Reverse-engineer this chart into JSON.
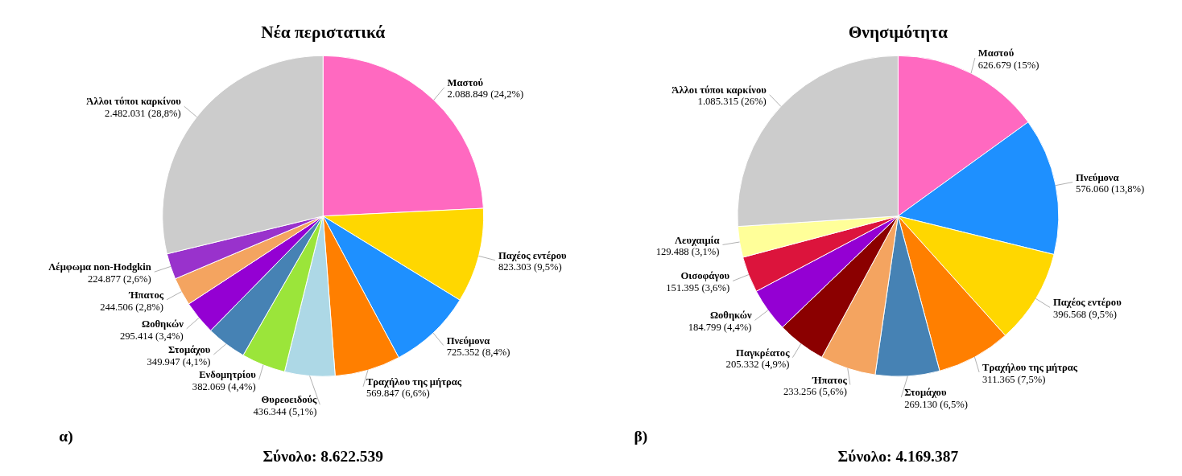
{
  "chart_data": [
    {
      "type": "pie",
      "title": "Νέα περιστατικά",
      "categories": [
        "Μαστού",
        "Παχέος εντέρου",
        "Πνεύμονα",
        "Τραχήλου της μήτρας",
        "Θυρεοειδούς",
        "Ενδομητρίου",
        "Στομάχου",
        "Ωοθηκών",
        "Ήπατος",
        "Λέμφωμα non-Hodgkin",
        "Άλλοι τύποι καρκίνου"
      ],
      "values": [
        2088849,
        823303,
        725352,
        569847,
        436344,
        382069,
        349947,
        295414,
        244506,
        224877,
        2482031
      ],
      "value_labels": [
        "2.088.849 (24,2%)",
        "823.303 (9,5%)",
        "725.352 (8,4%)",
        "569.847 (6,6%)",
        "436.344 (5,1%)",
        "382.069 (4,4%)",
        "349.947 (4,1%)",
        "295.414 (3,4%)",
        "244.506 (2,8%)",
        "224.877 (2,6%)",
        "2.482.031 (28,8%)"
      ],
      "colors": [
        "#ff69c0",
        "#ffd700",
        "#1e90ff",
        "#ff7f00",
        "#add8e6",
        "#9be53a",
        "#4682b4",
        "#9400d3",
        "#f4a460",
        "#9932cc",
        "#cccccc"
      ],
      "annotations": [
        "α)",
        "Σύνολο: 8.622.539"
      ]
    },
    {
      "type": "pie",
      "title": "Θνησιμότητα",
      "categories": [
        "Μαστού",
        "Πνεύμονα",
        "Παχέος εντέρου",
        "Τραχήλου της μήτρας",
        "Στομάχου",
        "Ήπατος",
        "Παγκρέατος",
        "Ωοθηκών",
        "Οισοφάγου",
        "Λευχαιμία",
        "Άλλοι τύποι καρκίνου"
      ],
      "values": [
        626679,
        576060,
        396568,
        311365,
        269130,
        233256,
        205332,
        184799,
        151395,
        129488,
        1085315
      ],
      "value_labels": [
        "626.679 (15%)",
        "576.060 (13,8%)",
        "396.568 (9,5%)",
        "311.365 (7,5%)",
        "269.130 (6,5%)",
        "233.256 (5,6%)",
        "205.332 (4,9%)",
        "184.799 (4,4%)",
        "151.395 (3,6%)",
        "129.488 (3,1%)",
        "1.085.315 (26%)"
      ],
      "colors": [
        "#ff69c0",
        "#1e90ff",
        "#ffd700",
        "#ff7f00",
        "#4682b4",
        "#f4a460",
        "#8b0000",
        "#9400d3",
        "#dc143c",
        "#ffff99",
        "#cccccc"
      ],
      "annotations": [
        "β)",
        "Σύνολο: 4.169.387"
      ]
    }
  ]
}
